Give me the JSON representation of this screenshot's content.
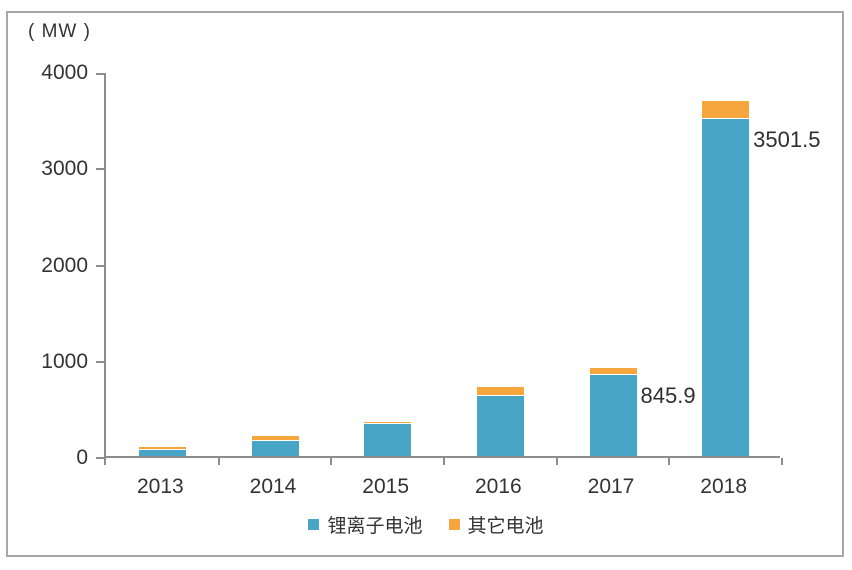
{
  "unit_label": "( MW )",
  "chart_data": {
    "type": "bar",
    "stacked": true,
    "title": "",
    "ylabel_unit": "MW",
    "categories": [
      "2013",
      "2014",
      "2015",
      "2016",
      "2017",
      "2018"
    ],
    "series": [
      {
        "name": "锂离子电池",
        "color": "#48a5c5",
        "values": [
          65,
          155,
          330,
          620,
          845.9,
          3501.5
        ]
      },
      {
        "name": "其它电池",
        "color": "#f6a63c",
        "values": [
          30,
          55,
          25,
          95,
          68,
          190
        ]
      }
    ],
    "ylim": [
      0,
      4000
    ],
    "yticks": [
      0,
      1000,
      2000,
      3000,
      4000
    ],
    "grid": false,
    "legend_position": "bottom",
    "data_labels": [
      {
        "category": "2017",
        "series": "锂离子电池",
        "text": "845.9"
      },
      {
        "category": "2018",
        "series": "锂离子电池",
        "text": "3501.5"
      }
    ]
  },
  "colors": {
    "axis": "#8c8c8c",
    "text": "#333333",
    "frame": "#a8a8a8",
    "background": "#ffffff"
  }
}
